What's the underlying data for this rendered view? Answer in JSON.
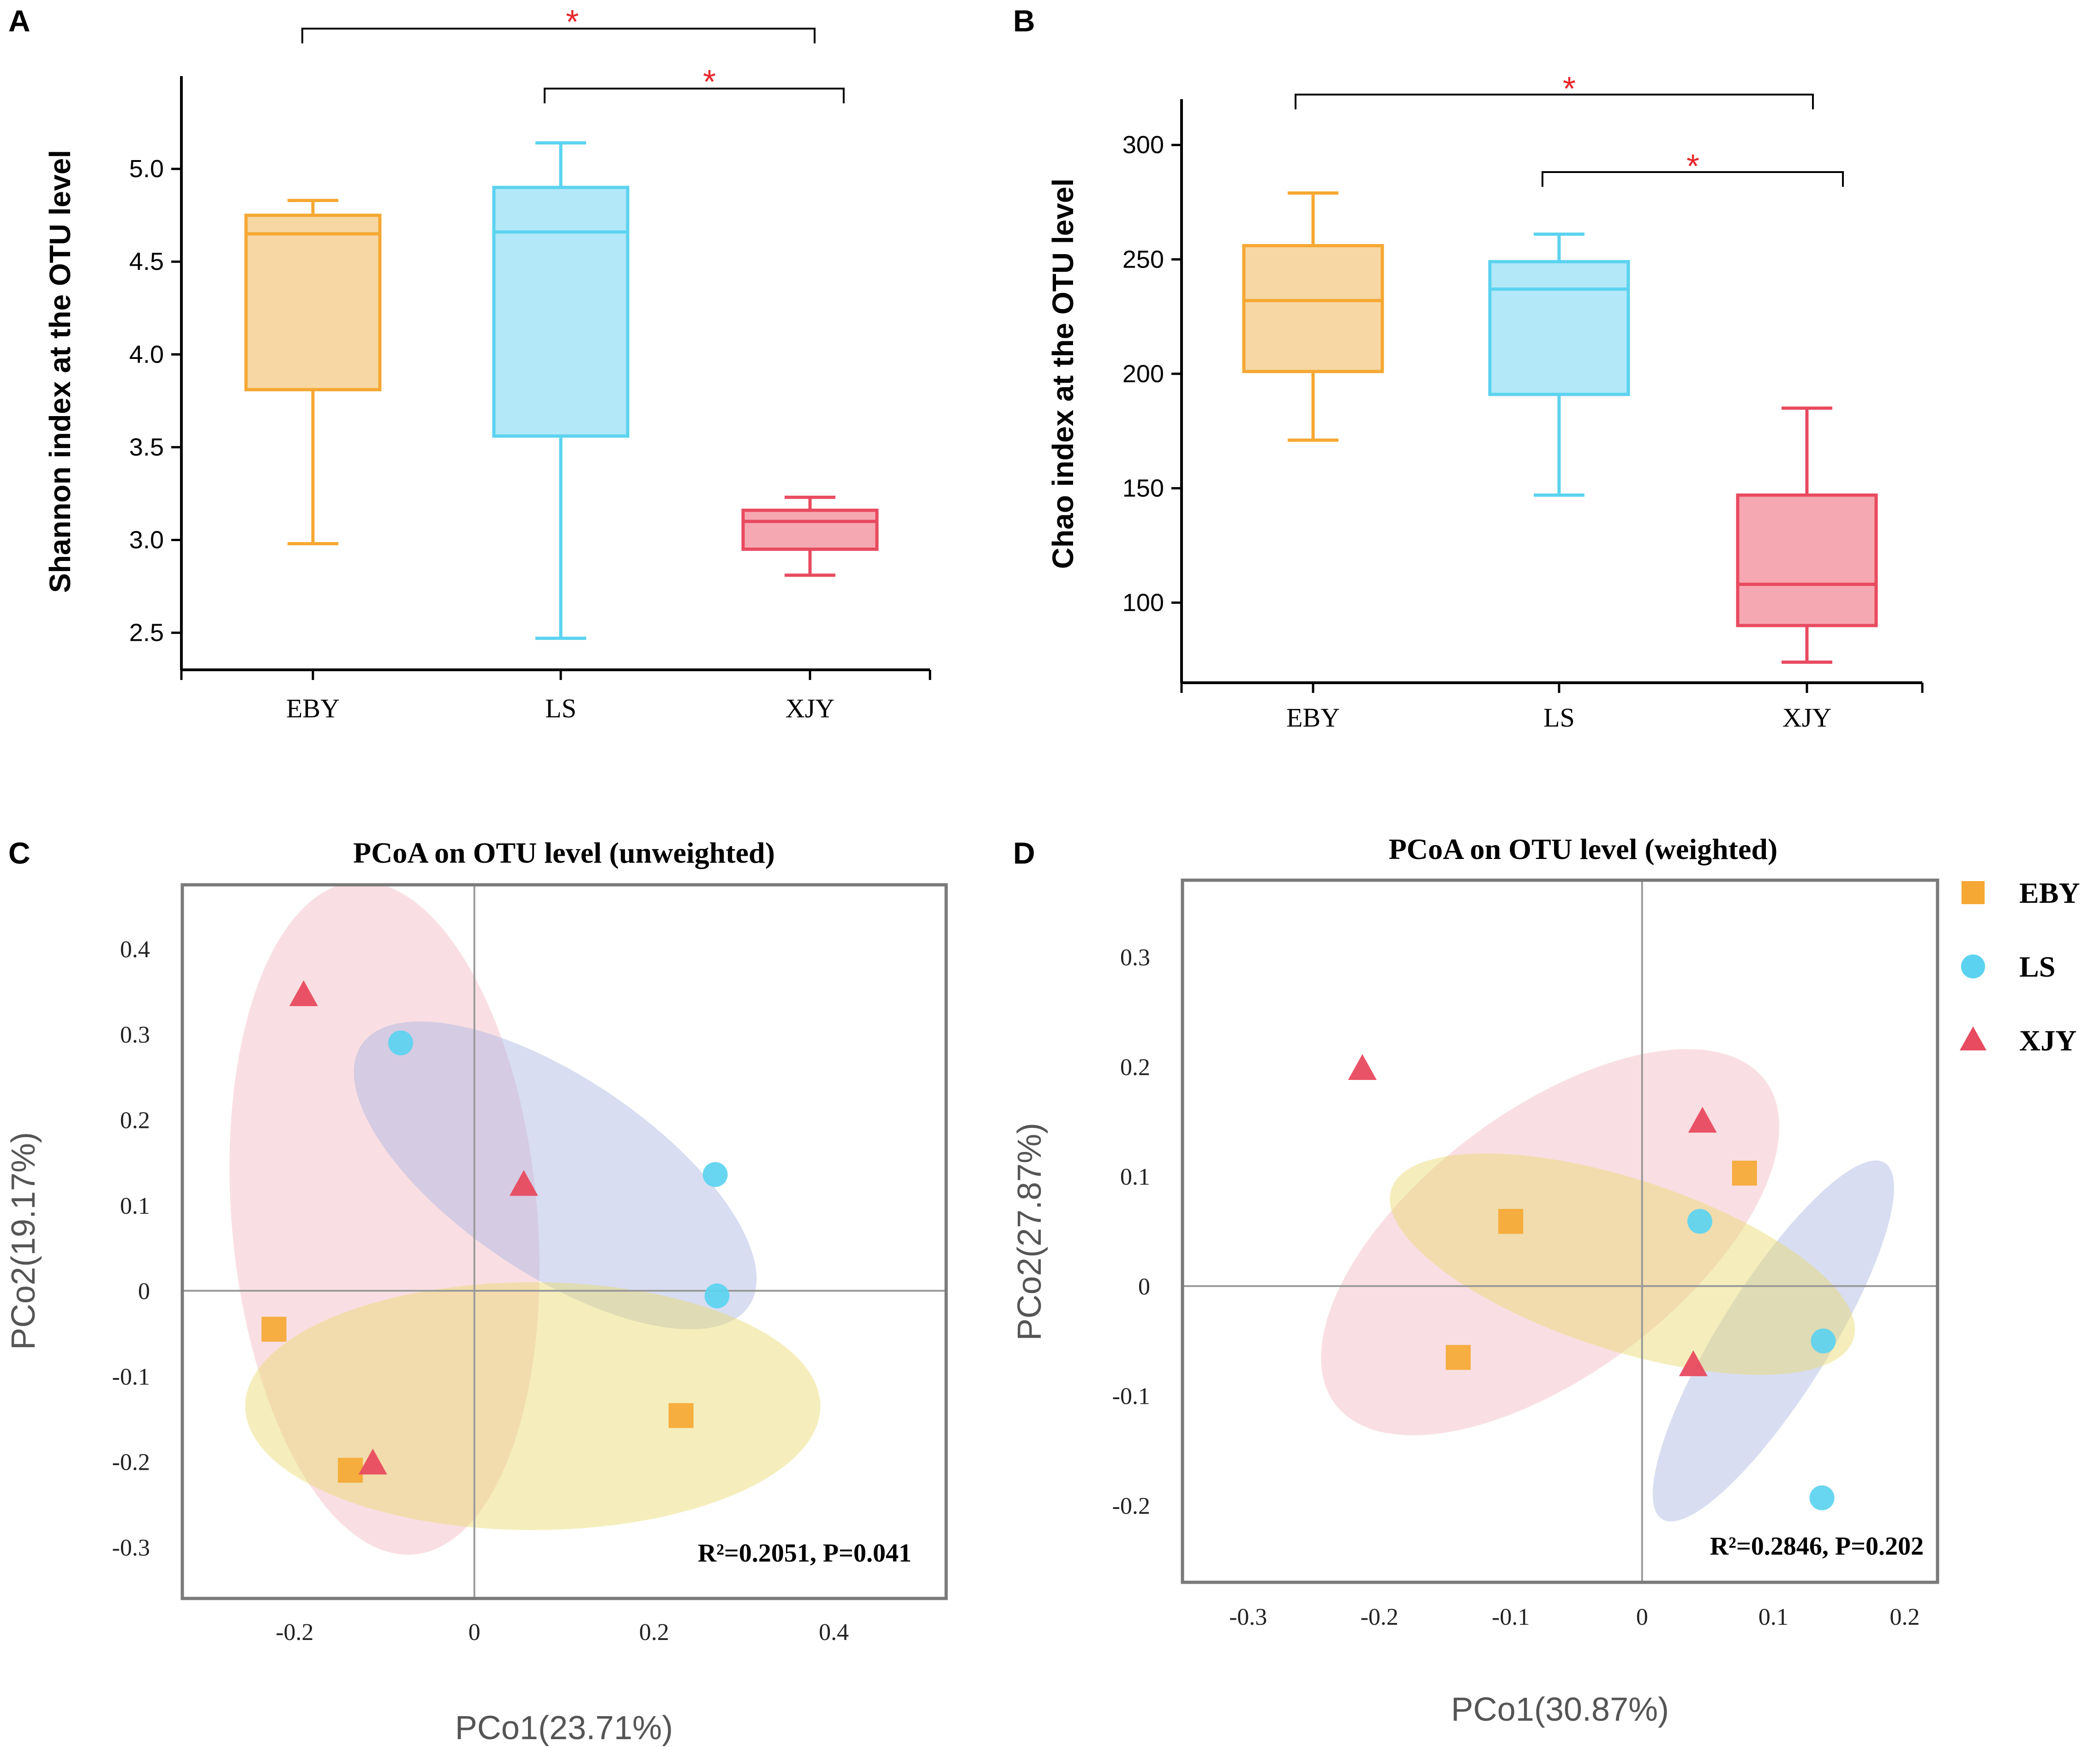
{
  "colors": {
    "EBY": "#f5a833",
    "LS": "#5bd3f0",
    "XJY": "#e84a5f",
    "EBY_fill": "#f7d7a3",
    "LS_fill": "#b3e8f8",
    "XJY_fill": "#f6a8b2",
    "star": "#e8262b",
    "ell_EBY": "#e8d96a",
    "ell_LS": "#a8b4e0",
    "ell_XJY": "#f2b8c0"
  },
  "panels": {
    "A": "A",
    "B": "B",
    "C": "C",
    "D": "D"
  },
  "legend": {
    "items": [
      {
        "label": "EBY",
        "shape": "square-icon",
        "group": "EBY"
      },
      {
        "label": "LS",
        "shape": "circle-icon",
        "group": "LS"
      },
      {
        "label": "XJY",
        "shape": "triangle-icon",
        "group": "XJY"
      }
    ]
  },
  "chart_data": [
    {
      "id": "A",
      "type": "box",
      "ylabel": "Shannon index at the OTU level",
      "categories": [
        "EBY",
        "LS",
        "XJY"
      ],
      "ylim": [
        2.3,
        5.5
      ],
      "yticks": [
        "2.5",
        "3.0",
        "3.5",
        "4.0",
        "4.5",
        "5.0"
      ],
      "boxes": [
        {
          "group": "EBY",
          "min": 2.98,
          "q1": 3.81,
          "median": 4.65,
          "q3": 4.75,
          "max": 4.83
        },
        {
          "group": "LS",
          "min": 2.47,
          "q1": 3.56,
          "median": 4.66,
          "q3": 4.9,
          "max": 5.14
        },
        {
          "group": "XJY",
          "min": 2.81,
          "q1": 2.95,
          "median": 3.1,
          "q3": 3.16,
          "max": 3.23
        }
      ],
      "significance": [
        {
          "from": "EBY",
          "to": "XJY",
          "label": "*"
        },
        {
          "from": "LS",
          "to": "XJY",
          "label": "*"
        }
      ]
    },
    {
      "id": "B",
      "type": "box",
      "ylabel": "Chao index at the OTU level",
      "categories": [
        "EBY",
        "LS",
        "XJY"
      ],
      "ylim": [
        65,
        320
      ],
      "yticks": [
        "100",
        "150",
        "200",
        "250",
        "300"
      ],
      "boxes": [
        {
          "group": "EBY",
          "min": 171,
          "q1": 201,
          "median": 232,
          "q3": 256,
          "max": 279
        },
        {
          "group": "LS",
          "min": 147,
          "q1": 191,
          "median": 237,
          "q3": 249,
          "max": 261
        },
        {
          "group": "XJY",
          "min": 74,
          "q1": 90,
          "median": 108,
          "q3": 147,
          "max": 185
        }
      ],
      "significance": [
        {
          "from": "EBY",
          "to": "XJY",
          "label": "*"
        },
        {
          "from": "LS",
          "to": "XJY",
          "label": "*"
        }
      ]
    },
    {
      "id": "C",
      "type": "scatter",
      "title": "PCoA on OTU level (unweighted)",
      "xlabel": "PCo1(23.71%)",
      "ylabel": "PCo2(19.17%)",
      "xlim": [
        -0.325,
        0.525
      ],
      "ylim": [
        -0.36,
        0.475
      ],
      "xticks": [
        "-0.2",
        "0",
        "0.2",
        "0.4"
      ],
      "yticks": [
        "-0.3",
        "-0.2",
        "-0.1",
        "0",
        "0.1",
        "0.2",
        "0.3",
        "0.4"
      ],
      "annotation": "R²=0.2051, P=0.041",
      "points": [
        {
          "group": "EBY",
          "x": -0.223,
          "y": -0.045
        },
        {
          "group": "EBY",
          "x": -0.138,
          "y": -0.21
        },
        {
          "group": "EBY",
          "x": 0.23,
          "y": -0.146
        },
        {
          "group": "LS",
          "x": -0.082,
          "y": 0.29
        },
        {
          "group": "LS",
          "x": 0.268,
          "y": 0.136
        },
        {
          "group": "LS",
          "x": 0.27,
          "y": -0.006
        },
        {
          "group": "XJY",
          "x": -0.19,
          "y": 0.346
        },
        {
          "group": "XJY",
          "x": 0.055,
          "y": 0.124
        },
        {
          "group": "XJY",
          "x": -0.113,
          "y": -0.202
        }
      ],
      "ellipses": [
        {
          "group": "XJY",
          "cx": -0.1,
          "cy": 0.085,
          "rx": 0.17,
          "ry": 0.395,
          "angle": -5
        },
        {
          "group": "LS",
          "cx": 0.09,
          "cy": 0.135,
          "rx": 0.26,
          "ry": 0.115,
          "angle": 34
        },
        {
          "group": "EBY",
          "cx": 0.065,
          "cy": -0.135,
          "rx": 0.32,
          "ry": 0.145,
          "angle": 0
        }
      ]
    },
    {
      "id": "D",
      "type": "scatter",
      "title": "PCoA on OTU level (weighted)",
      "xlabel": "PCo1(30.87%)",
      "ylabel": "PCo2(27.87%)",
      "xlim": [
        -0.35,
        0.225
      ],
      "ylim": [
        -0.27,
        0.37
      ],
      "xticks": [
        "-0.3",
        "-0.2",
        "-0.1",
        "0",
        "0.1",
        "0.2"
      ],
      "yticks": [
        "-0.2",
        "-0.1",
        "0",
        "0.1",
        "0.2",
        "0.3"
      ],
      "annotation": "R²=0.2846, P=0.202",
      "points": [
        {
          "group": "EBY",
          "x": -0.1,
          "y": 0.059
        },
        {
          "group": "EBY",
          "x": 0.078,
          "y": 0.103
        },
        {
          "group": "EBY",
          "x": -0.14,
          "y": -0.065
        },
        {
          "group": "LS",
          "x": 0.044,
          "y": 0.059
        },
        {
          "group": "LS",
          "x": 0.138,
          "y": -0.05
        },
        {
          "group": "LS",
          "x": 0.137,
          "y": -0.193
        },
        {
          "group": "XJY",
          "x": -0.213,
          "y": 0.198
        },
        {
          "group": "XJY",
          "x": 0.046,
          "y": 0.15
        },
        {
          "group": "XJY",
          "x": 0.039,
          "y": -0.072
        }
      ],
      "ellipses": [
        {
          "group": "XJY",
          "cx": -0.07,
          "cy": 0.04,
          "rx": 0.205,
          "ry": 0.12,
          "angle": -37
        },
        {
          "group": "LS",
          "cx": 0.1,
          "cy": -0.05,
          "rx": 0.16,
          "ry": 0.05,
          "angle": -58
        },
        {
          "group": "EBY",
          "cx": -0.015,
          "cy": 0.02,
          "rx": 0.185,
          "ry": 0.078,
          "angle": 18
        }
      ]
    }
  ]
}
